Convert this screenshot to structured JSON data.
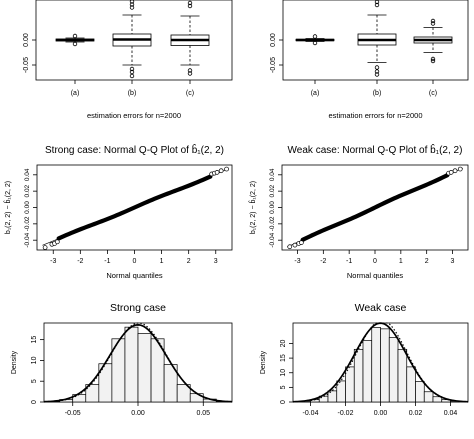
{
  "chart_data": [
    {
      "type": "box",
      "panel": "top-left",
      "title": "",
      "xlabel": "estimation errors for n=2000",
      "ylabel": "",
      "categories": [
        "(a)",
        "(b)",
        "(c)"
      ],
      "ylim": [
        -0.08,
        0.08
      ],
      "yticks": [
        -0.05,
        0.0
      ],
      "ytick_labels": [
        "-0.05",
        "0.00"
      ],
      "boxes": [
        {
          "category": "(a)",
          "low": -0.004,
          "q1": -0.002,
          "median": 0.0,
          "q3": 0.002,
          "high": 0.004,
          "outliers": [
            0.008,
            -0.008
          ]
        },
        {
          "category": "(b)",
          "low": -0.05,
          "q1": -0.012,
          "median": 0.001,
          "q3": 0.012,
          "high": 0.05,
          "outliers": [
            0.077,
            0.071,
            0.065,
            -0.058,
            -0.064,
            -0.072
          ]
        },
        {
          "category": "(c)",
          "low": -0.05,
          "q1": -0.011,
          "median": 0.0,
          "q3": 0.01,
          "high": 0.048,
          "outliers": [
            0.074,
            0.068,
            -0.061,
            -0.067
          ]
        }
      ]
    },
    {
      "type": "box",
      "panel": "top-right",
      "title": "",
      "xlabel": "estimation errors for n=2000",
      "ylabel": "",
      "categories": [
        "(a)",
        "(b)",
        "(c)"
      ],
      "ylim": [
        -0.08,
        0.08
      ],
      "yticks": [
        -0.05,
        0.0
      ],
      "ytick_labels": [
        "-0.05",
        "0.00"
      ],
      "boxes": [
        {
          "category": "(a)",
          "low": -0.003,
          "q1": -0.0015,
          "median": 0.0,
          "q3": 0.0015,
          "high": 0.003,
          "outliers": [
            0.007,
            -0.006
          ]
        },
        {
          "category": "(b)",
          "low": -0.045,
          "q1": -0.01,
          "median": 0.0,
          "q3": 0.012,
          "high": 0.05,
          "outliers": [
            0.076,
            0.07,
            -0.055,
            -0.063,
            -0.069
          ]
        },
        {
          "category": "(c)",
          "low": -0.025,
          "q1": -0.006,
          "median": 0.0,
          "q3": 0.006,
          "high": 0.025,
          "outliers": [
            0.038,
            0.033,
            -0.038,
            -0.042
          ]
        }
      ]
    },
    {
      "type": "scatter",
      "panel": "middle-left",
      "title": "Strong case: Normal Q-Q Plot of b̂₁(2, 2)",
      "xlabel": "Normal quantiles",
      "ylabel": "b₁(2, 2) − b̂₁(2, 2)",
      "xlim": [
        -3.6,
        3.6
      ],
      "ylim": [
        -0.052,
        0.052
      ],
      "xticks": [
        -3,
        -2,
        -1,
        0,
        1,
        2,
        3
      ],
      "yticks": [
        -0.04,
        -0.02,
        0.0,
        0.02,
        0.04
      ],
      "ytick_labels": [
        "-0.04",
        "-0.02",
        "0.00",
        "0.02",
        "0.04"
      ],
      "points": [
        [
          -3.3,
          -0.049
        ],
        [
          -3.05,
          -0.045
        ],
        [
          -2.95,
          -0.044
        ],
        [
          -2.85,
          -0.042
        ],
        [
          2.85,
          0.041
        ],
        [
          2.95,
          0.042
        ],
        [
          3.05,
          0.043
        ],
        [
          3.2,
          0.045
        ],
        [
          3.4,
          0.047
        ]
      ],
      "curve": {
        "slope": 0.0136,
        "intercept": 0.0,
        "from": -2.8,
        "to": 2.8
      }
    },
    {
      "type": "scatter",
      "panel": "middle-right",
      "title": "Weak case: Normal Q-Q Plot of b̂₁(2, 2)",
      "xlabel": "Normal quantiles",
      "ylabel": "b₁(2, 2) − b̂₁(2, 2)",
      "xlim": [
        -3.6,
        3.6
      ],
      "ylim": [
        -0.052,
        0.052
      ],
      "xticks": [
        -3,
        -2,
        -1,
        0,
        1,
        2,
        3
      ],
      "yticks": [
        -0.04,
        -0.02,
        0.0,
        0.02,
        0.04
      ],
      "ytick_labels": [
        "-0.04",
        "-0.02",
        "0.00",
        "0.02",
        "0.04"
      ],
      "points": [
        [
          -3.3,
          -0.048
        ],
        [
          -3.1,
          -0.046
        ],
        [
          -2.95,
          -0.044
        ],
        [
          -2.85,
          -0.043
        ],
        [
          2.85,
          0.042
        ],
        [
          2.95,
          0.043
        ],
        [
          3.1,
          0.045
        ],
        [
          3.3,
          0.047
        ]
      ],
      "curve": {
        "slope": 0.0142,
        "intercept": 0.0,
        "from": -2.8,
        "to": 2.8
      }
    },
    {
      "type": "histogram",
      "panel": "bottom-left",
      "title": "Strong case",
      "xlabel": "",
      "ylabel": "Density",
      "xlim": [
        -0.072,
        0.072
      ],
      "ylim": [
        0,
        19
      ],
      "xticks": [
        -0.05,
        0.0,
        0.05
      ],
      "xtick_labels": [
        "-0.05",
        "0.00",
        "0.05"
      ],
      "yticks": [
        0,
        5,
        10,
        15
      ],
      "bins": {
        "edges": [
          -0.07,
          -0.06,
          -0.05,
          -0.04,
          -0.03,
          -0.02,
          -0.01,
          0.0,
          0.01,
          0.02,
          0.03,
          0.04,
          0.05,
          0.06,
          0.07
        ],
        "densities": [
          0.1,
          0.6,
          1.8,
          4.2,
          9.2,
          15.2,
          18.0,
          16.5,
          15.2,
          9.0,
          4.2,
          2.0,
          0.7,
          0.1
        ]
      },
      "curves": [
        {
          "style": "solid",
          "mean": 0.0,
          "sd": 0.0215
        },
        {
          "style": "dotted",
          "mean": 0.0005,
          "sd": 0.021
        }
      ]
    },
    {
      "type": "histogram",
      "panel": "bottom-right",
      "title": "Weak case",
      "xlabel": "",
      "ylabel": "Density",
      "xlim": [
        -0.05,
        0.05
      ],
      "ylim": [
        0,
        27
      ],
      "xticks": [
        -0.04,
        -0.02,
        0.0,
        0.02,
        0.04
      ],
      "xtick_labels": [
        "-0.04",
        "-0.02",
        "0.00",
        "0.02",
        "0.04"
      ],
      "yticks": [
        0,
        5,
        10,
        15,
        20
      ],
      "bins": {
        "edges": [
          -0.045,
          -0.04,
          -0.035,
          -0.03,
          -0.025,
          -0.02,
          -0.015,
          -0.01,
          -0.005,
          0.0,
          0.005,
          0.01,
          0.015,
          0.02,
          0.025,
          0.03,
          0.035,
          0.04,
          0.045
        ],
        "densities": [
          0.3,
          0.8,
          2.0,
          3.8,
          7.2,
          12.0,
          18.0,
          21.0,
          25.5,
          25.0,
          22.0,
          18.0,
          12.0,
          7.0,
          3.5,
          1.8,
          0.8,
          0.3
        ]
      },
      "curves": [
        {
          "style": "solid",
          "mean": 0.0,
          "sd": 0.0148
        },
        {
          "style": "dotted",
          "mean": 0.0008,
          "sd": 0.0143
        }
      ]
    }
  ]
}
